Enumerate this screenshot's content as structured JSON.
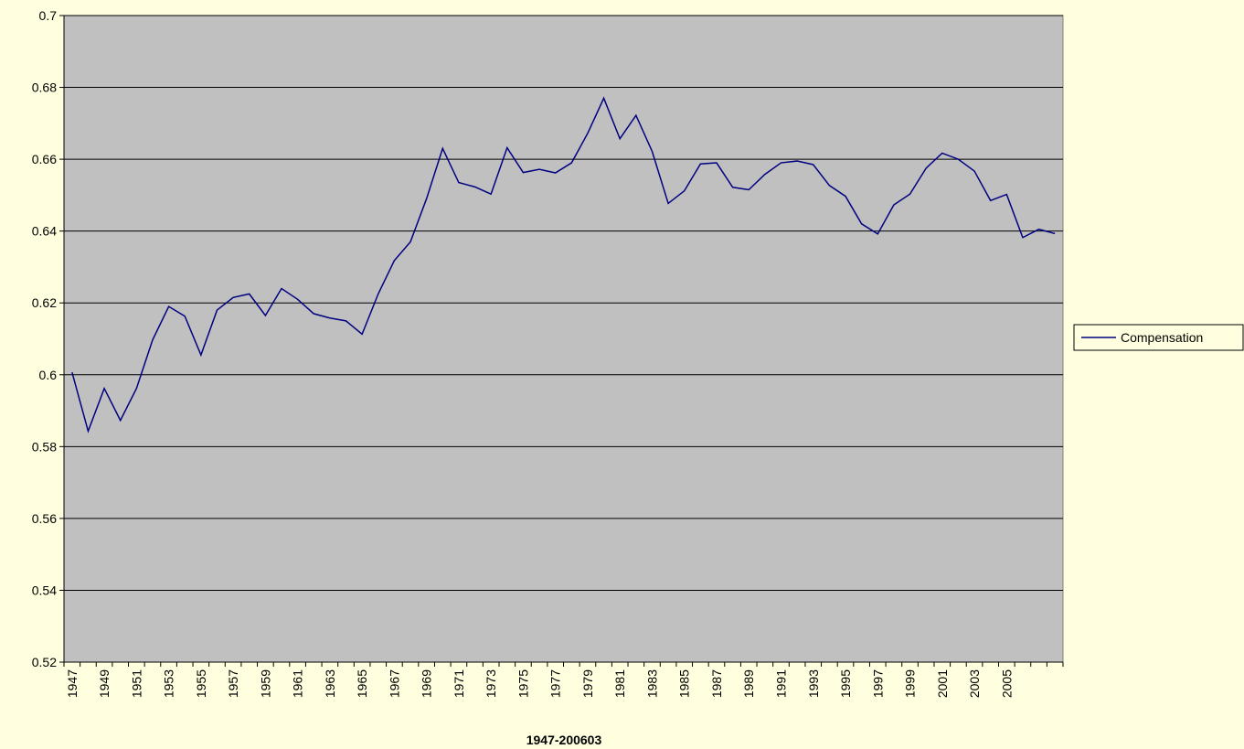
{
  "chart_data": {
    "type": "line",
    "x_label": "1947-200603",
    "categories": [
      "1947",
      null,
      "1949",
      null,
      "1951",
      null,
      "1953",
      null,
      "1955",
      null,
      "1957",
      null,
      "1959",
      null,
      "1961",
      null,
      "1963",
      null,
      "1965",
      null,
      "1967",
      null,
      "1969",
      null,
      "1971",
      null,
      "1973",
      null,
      "1975",
      null,
      "1977",
      null,
      "1979",
      null,
      "1981",
      null,
      "1983",
      null,
      "1985",
      null,
      "1987",
      null,
      "1989",
      null,
      "1991",
      null,
      "1993",
      null,
      "1995",
      null,
      "1997",
      null,
      "1999",
      null,
      "2001",
      null,
      "2003",
      null,
      "2005",
      null,
      null,
      null
    ],
    "series": [
      {
        "name": "Compensation",
        "color": "#000080",
        "values": [
          0.6007,
          0.5843,
          0.5962,
          0.5873,
          0.5962,
          0.6097,
          0.619,
          0.6163,
          0.6055,
          0.618,
          0.6215,
          0.6225,
          0.6165,
          0.624,
          0.621,
          0.617,
          0.6158,
          0.615,
          0.6113,
          0.6225,
          0.6318,
          0.637,
          0.649,
          0.663,
          0.6535,
          0.6523,
          0.6503,
          0.6632,
          0.6563,
          0.6572,
          0.6562,
          0.659,
          0.6672,
          0.677,
          0.6657,
          0.6722,
          0.6622,
          0.6477,
          0.6512,
          0.6587,
          0.659,
          0.6522,
          0.6515,
          0.6558,
          0.659,
          0.6595,
          0.6585,
          0.6527,
          0.6497,
          0.642,
          0.6392,
          0.6473,
          0.6503,
          0.6575,
          0.6617,
          0.66,
          0.6567,
          0.6485,
          0.6502,
          0.6382,
          0.6405,
          0.6393
        ]
      }
    ],
    "ylim": [
      0.52,
      0.7
    ],
    "yticks": [
      0.52,
      0.54,
      0.56,
      0.58,
      0.6,
      0.62,
      0.64,
      0.66,
      0.68,
      0.7
    ],
    "grid": true,
    "legend": "right",
    "plot_background": "#c0c0c0"
  }
}
